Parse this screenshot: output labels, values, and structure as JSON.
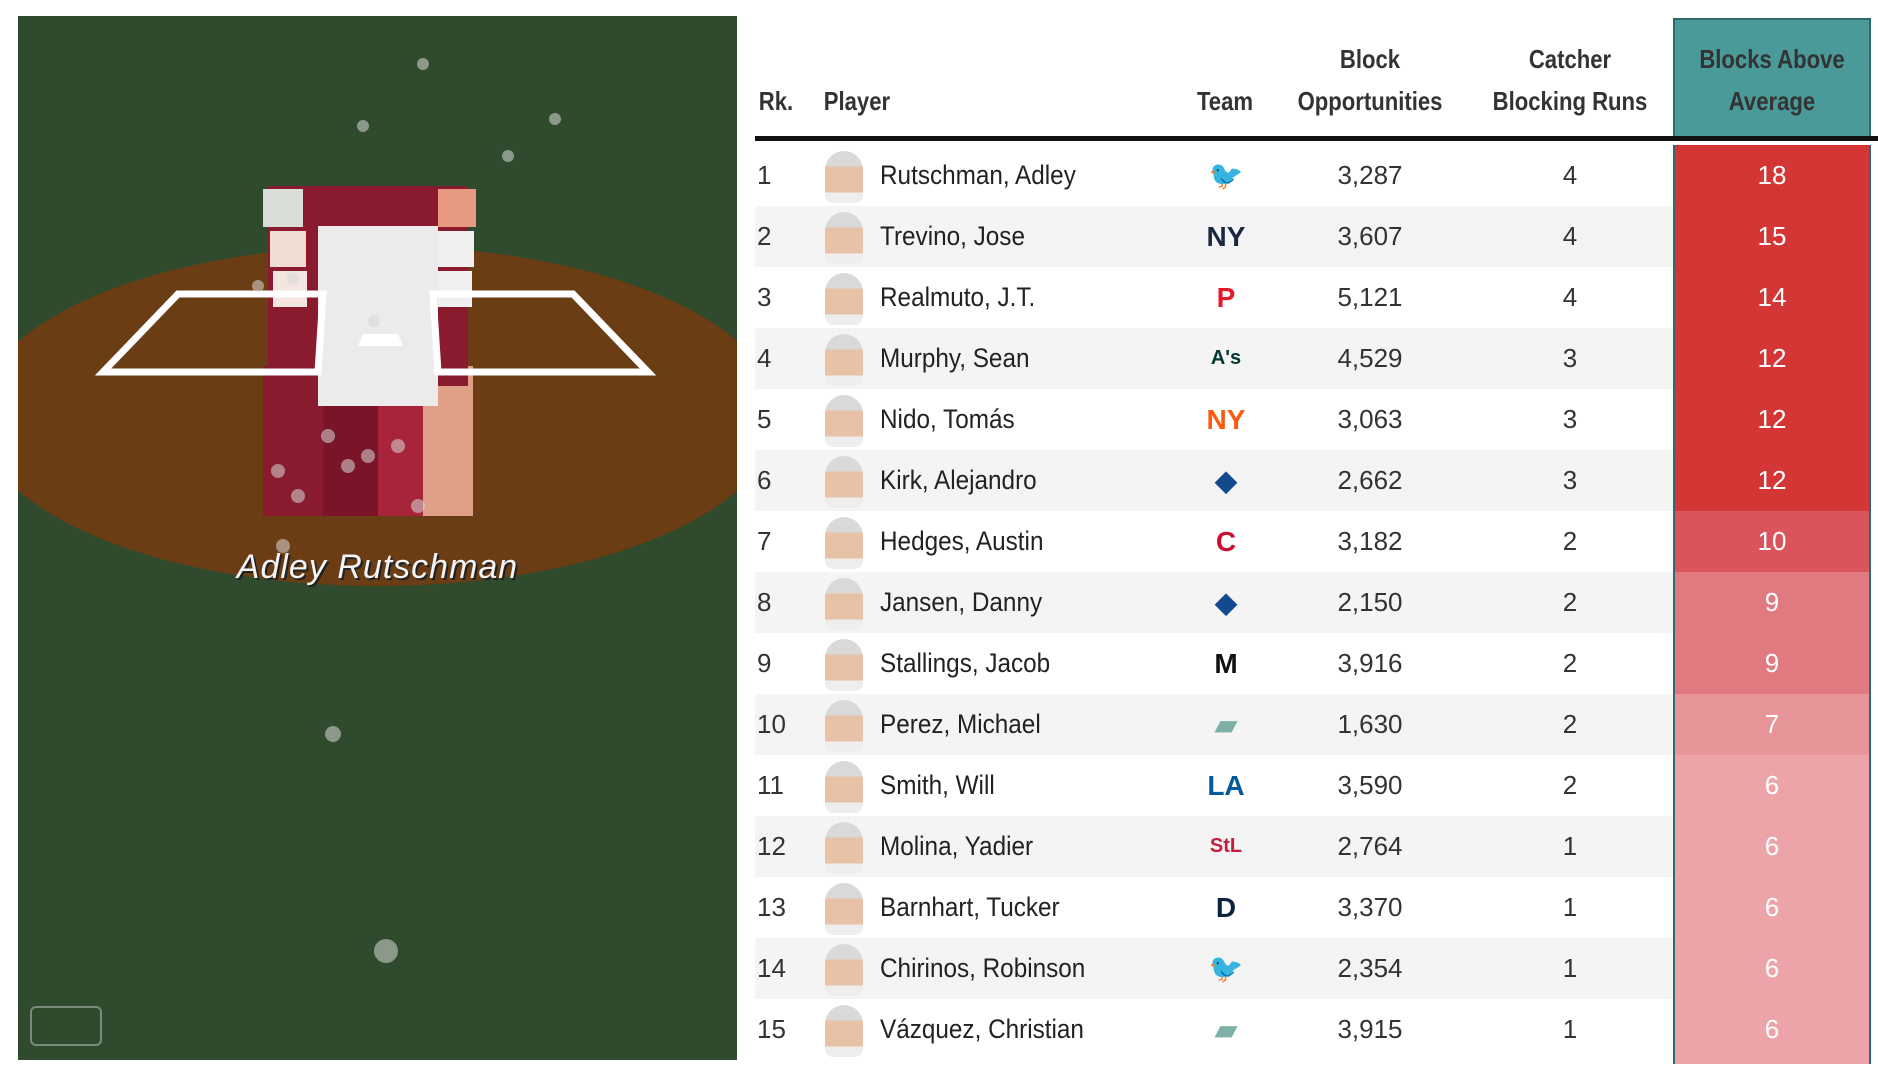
{
  "scene": {
    "player_label": "Adley Rutschman",
    "logo": "mlb-logo",
    "colors": {
      "grass": "#2f4a2c",
      "dirt": "#6b3d14"
    }
  },
  "table": {
    "headers": {
      "rank": "Rk.",
      "player": "Player",
      "team": "Team",
      "opportunities": [
        "Block",
        "Opportunities"
      ],
      "blocking_runs": [
        "Catcher",
        "Blocking Runs"
      ],
      "baa": [
        "Blocks Above",
        "Average"
      ]
    },
    "header_color": "#4a9a9a",
    "rows": [
      {
        "rank": "1",
        "player": "Rutschman, Adley",
        "team": "Orioles",
        "team_icon": "orioles-logo",
        "team_color": "#df4601",
        "opportunities": "3,287",
        "blocking_runs": "4",
        "baa": "18",
        "baa_color": "#d43535"
      },
      {
        "rank": "2",
        "player": "Trevino, Jose",
        "team": "Yankees",
        "team_icon": "yankees-logo",
        "team_color": "#1c2841",
        "opportunities": "3,607",
        "blocking_runs": "4",
        "baa": "15",
        "baa_color": "#d43535"
      },
      {
        "rank": "3",
        "player": "Realmuto, J.T.",
        "team": "Phillies",
        "team_icon": "phillies-logo",
        "team_color": "#e81828",
        "opportunities": "5,121",
        "blocking_runs": "4",
        "baa": "14",
        "baa_color": "#d43535"
      },
      {
        "rank": "4",
        "player": "Murphy, Sean",
        "team": "Athletics",
        "team_icon": "athletics-logo",
        "team_color": "#003831",
        "opportunities": "4,529",
        "blocking_runs": "3",
        "baa": "12",
        "baa_color": "#d43535"
      },
      {
        "rank": "5",
        "player": "Nido, Tomás",
        "team": "Mets",
        "team_icon": "mets-logo",
        "team_color": "#ff5910",
        "opportunities": "3,063",
        "blocking_runs": "3",
        "baa": "12",
        "baa_color": "#d43535"
      },
      {
        "rank": "6",
        "player": "Kirk, Alejandro",
        "team": "Blue Jays",
        "team_icon": "blue-jays-logo",
        "team_color": "#134a8e",
        "opportunities": "2,662",
        "blocking_runs": "3",
        "baa": "12",
        "baa_color": "#d43535"
      },
      {
        "rank": "7",
        "player": "Hedges, Austin",
        "team": "Guardians",
        "team_icon": "guardians-logo",
        "team_color": "#c8102e",
        "opportunities": "3,182",
        "blocking_runs": "2",
        "baa": "10",
        "baa_color": "#d9555b"
      },
      {
        "rank": "8",
        "player": "Jansen, Danny",
        "team": "Blue Jays",
        "team_icon": "blue-jays-logo",
        "team_color": "#134a8e",
        "opportunities": "2,150",
        "blocking_runs": "2",
        "baa": "9",
        "baa_color": "#e07a80"
      },
      {
        "rank": "9",
        "player": "Stallings, Jacob",
        "team": "Marlins",
        "team_icon": "marlins-logo",
        "team_color": "#111111",
        "opportunities": "3,916",
        "blocking_runs": "2",
        "baa": "9",
        "baa_color": "#e07a80"
      },
      {
        "rank": "10",
        "player": "Perez, Michael",
        "team": "MLB",
        "team_icon": "mlb-logo",
        "team_color": "#7fb0a8",
        "opportunities": "1,630",
        "blocking_runs": "2",
        "baa": "7",
        "baa_color": "#e8959a"
      },
      {
        "rank": "11",
        "player": "Smith, Will",
        "team": "Dodgers",
        "team_icon": "dodgers-logo",
        "team_color": "#005a9c",
        "opportunities": "3,590",
        "blocking_runs": "2",
        "baa": "6",
        "baa_color": "#eca4a8"
      },
      {
        "rank": "12",
        "player": "Molina, Yadier",
        "team": "Cardinals",
        "team_icon": "cardinals-logo",
        "team_color": "#c41e3a",
        "opportunities": "2,764",
        "blocking_runs": "1",
        "baa": "6",
        "baa_color": "#eca4a8"
      },
      {
        "rank": "13",
        "player": "Barnhart, Tucker",
        "team": "Tigers",
        "team_icon": "tigers-logo",
        "team_color": "#0c2340",
        "opportunities": "3,370",
        "blocking_runs": "1",
        "baa": "6",
        "baa_color": "#eca4a8"
      },
      {
        "rank": "14",
        "player": "Chirinos, Robinson",
        "team": "Orioles",
        "team_icon": "orioles-logo",
        "team_color": "#df4601",
        "opportunities": "2,354",
        "blocking_runs": "1",
        "baa": "6",
        "baa_color": "#eca4a8"
      },
      {
        "rank": "15",
        "player": "Vázquez, Christian",
        "team": "MLB",
        "team_icon": "mlb-logo",
        "team_color": "#7fb0a8",
        "opportunities": "3,915",
        "blocking_runs": "1",
        "baa": "6",
        "baa_color": "#eca4a8"
      }
    ]
  }
}
